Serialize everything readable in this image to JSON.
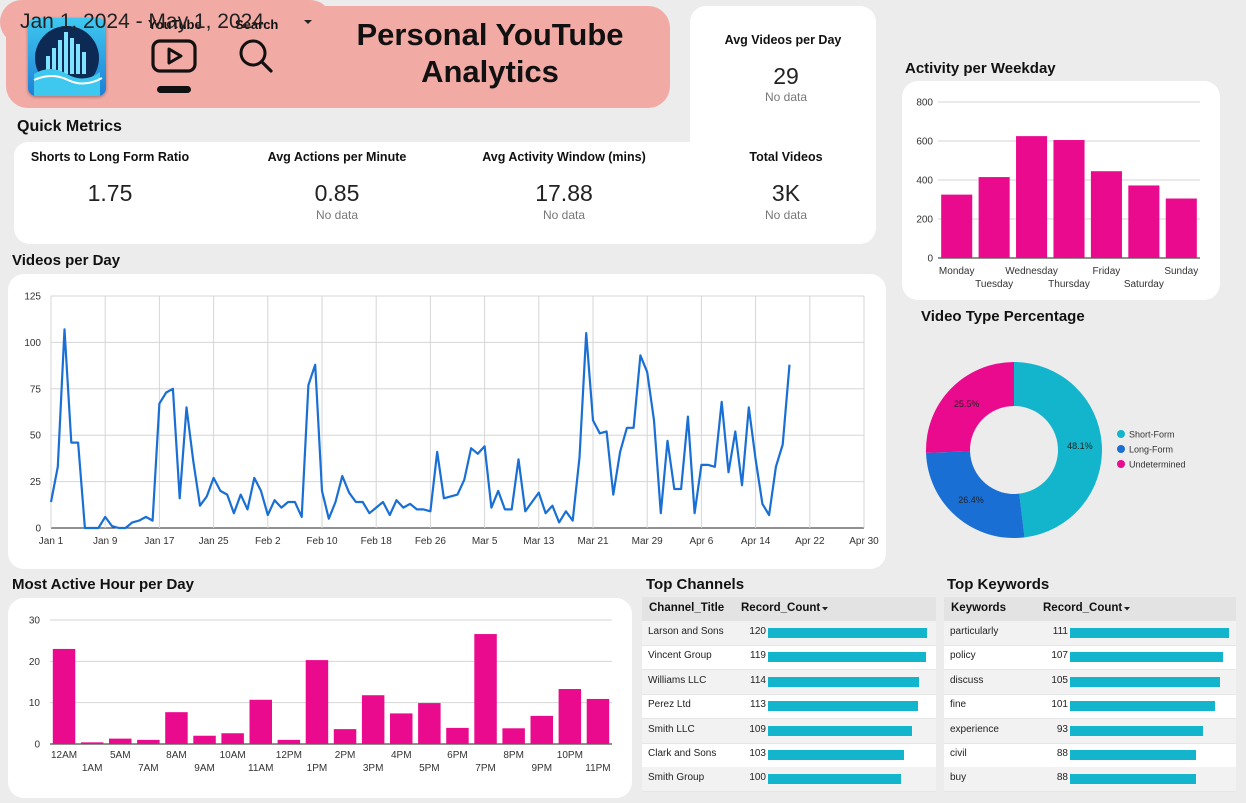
{
  "header": {
    "title_line1": "Personal YouTube",
    "title_line2": "Analytics",
    "nav": [
      {
        "label": "YouTube",
        "icon": "play-button-icon",
        "active": true
      },
      {
        "label": "Search",
        "icon": "search-icon",
        "active": false
      }
    ]
  },
  "date_range": {
    "value": "Jan 1, 2024 - May 1, 2024",
    "icon": "dropdown-arrow-icon"
  },
  "avg_videos_per_day": {
    "label": "Avg Videos per Day",
    "value": "29",
    "sub": "No data"
  },
  "quick_metrics": {
    "title": "Quick Metrics",
    "items": [
      {
        "label": "Shorts to Long Form Ratio",
        "value": "1.75",
        "sub": ""
      },
      {
        "label": "Avg Actions per Minute",
        "value": "0.85",
        "sub": "No data"
      },
      {
        "label": "Avg Activity Window (mins)",
        "value": "17.88",
        "sub": "No data"
      },
      {
        "label": "Total Videos",
        "value": "3K",
        "sub": "No data"
      }
    ]
  },
  "colors": {
    "magenta": "#ea0a8e",
    "blue": "#1a6fd4",
    "teal": "#12b5cb",
    "header_pink": "#f2aaa5"
  },
  "videos_per_day": {
    "title": "Videos per Day",
    "chart_data": {
      "type": "line",
      "ylim": [
        0,
        125
      ],
      "yticks": [
        0,
        25,
        50,
        75,
        100,
        125
      ],
      "xlim": [
        "2024-01-01",
        "2024-04-30"
      ],
      "xticks": [
        "Jan 1",
        "Jan 9",
        "Jan 17",
        "Jan 25",
        "Feb 2",
        "Feb 10",
        "Feb 18",
        "Feb 26",
        "Mar 5",
        "Mar 13",
        "Mar 21",
        "Mar 29",
        "Apr 6",
        "Apr 14",
        "Apr 22",
        "Apr 30"
      ],
      "x": [
        "2024-01-01",
        "2024-01-02",
        "2024-01-03",
        "2024-01-04",
        "2024-01-05",
        "2024-01-06",
        "2024-01-07",
        "2024-01-08",
        "2024-01-09",
        "2024-01-10",
        "2024-01-11",
        "2024-01-12",
        "2024-01-13",
        "2024-01-14",
        "2024-01-15",
        "2024-01-16",
        "2024-01-17",
        "2024-01-18",
        "2024-01-19",
        "2024-01-20",
        "2024-01-21",
        "2024-01-22",
        "2024-01-23",
        "2024-01-24",
        "2024-01-25",
        "2024-01-26",
        "2024-01-27",
        "2024-01-28",
        "2024-01-29",
        "2024-01-30",
        "2024-01-31",
        "2024-02-01",
        "2024-02-02",
        "2024-02-03",
        "2024-02-04",
        "2024-02-05",
        "2024-02-06",
        "2024-02-07",
        "2024-02-08",
        "2024-02-09",
        "2024-02-10",
        "2024-02-11",
        "2024-02-12",
        "2024-02-13",
        "2024-02-14",
        "2024-02-15",
        "2024-02-16",
        "2024-02-17",
        "2024-02-18",
        "2024-02-19",
        "2024-02-20",
        "2024-02-21",
        "2024-02-22",
        "2024-02-23",
        "2024-02-24",
        "2024-02-25",
        "2024-02-26",
        "2024-02-27",
        "2024-02-28",
        "2024-02-29",
        "2024-03-01",
        "2024-03-02",
        "2024-03-03",
        "2024-03-04",
        "2024-03-05",
        "2024-03-06",
        "2024-03-07",
        "2024-03-08",
        "2024-03-09",
        "2024-03-10",
        "2024-03-11",
        "2024-03-12",
        "2024-03-13",
        "2024-03-14",
        "2024-03-15",
        "2024-03-16",
        "2024-03-17",
        "2024-03-18",
        "2024-03-19",
        "2024-03-20",
        "2024-03-21",
        "2024-03-22",
        "2024-03-23",
        "2024-03-24",
        "2024-03-25",
        "2024-03-26",
        "2024-03-27",
        "2024-03-28",
        "2024-03-29",
        "2024-03-30",
        "2024-03-31",
        "2024-04-01",
        "2024-04-02",
        "2024-04-03",
        "2024-04-04",
        "2024-04-05",
        "2024-04-06",
        "2024-04-07",
        "2024-04-08",
        "2024-04-09",
        "2024-04-10",
        "2024-04-11",
        "2024-04-12",
        "2024-04-13",
        "2024-04-14",
        "2024-04-15",
        "2024-04-16",
        "2024-04-17",
        "2024-04-18",
        "2024-04-19"
      ],
      "values": [
        14,
        33,
        107,
        46,
        46,
        0,
        0,
        0,
        6,
        1,
        0,
        0,
        3,
        4,
        6,
        4,
        67,
        73,
        75,
        16,
        65,
        36,
        12,
        17,
        27,
        20,
        18,
        8,
        18,
        10,
        27,
        20,
        7,
        15,
        11,
        14,
        14,
        6,
        77,
        88,
        20,
        5,
        14,
        28,
        19,
        14,
        14,
        8,
        11,
        14,
        7,
        15,
        11,
        13,
        10,
        10,
        9,
        41,
        16,
        17,
        18,
        26,
        43,
        40,
        44,
        11,
        20,
        10,
        10,
        37,
        9,
        14,
        19,
        8,
        12,
        3,
        9,
        4,
        38,
        105,
        58,
        51,
        52,
        18,
        41,
        54,
        54,
        93,
        84,
        58,
        8,
        47,
        21,
        21,
        60,
        8,
        34,
        34,
        33,
        68,
        30,
        52,
        23,
        65,
        37,
        13,
        7,
        33,
        45,
        88
      ]
    }
  },
  "activity_per_weekday": {
    "title": "Activity per Weekday",
    "chart_data": {
      "type": "bar",
      "categories": [
        "Monday",
        "Tuesday",
        "Wednesday",
        "Thursday",
        "Friday",
        "Saturday",
        "Sunday"
      ],
      "values": [
        325,
        415,
        625,
        605,
        445,
        372,
        305
      ],
      "ylim": [
        0,
        800
      ],
      "yticks": [
        0,
        200,
        400,
        600,
        800
      ]
    }
  },
  "video_type_percentage": {
    "title": "Video Type Percentage",
    "chart_data": {
      "type": "pie",
      "categories": [
        "Short-Form",
        "Long-Form",
        "Undetermined"
      ],
      "values": [
        48.1,
        26.4,
        25.5
      ],
      "labels": [
        "48.1%",
        "26.4%",
        "25.5%"
      ],
      "colors": [
        "#12b5cb",
        "#1a6fd4",
        "#ea0a8e"
      ],
      "legend": "right"
    }
  },
  "most_active_hour": {
    "title": "Most Active Hour per Day",
    "chart_data": {
      "type": "bar",
      "categories": [
        "12AM",
        "1AM",
        "5AM",
        "7AM",
        "8AM",
        "9AM",
        "10AM",
        "11AM",
        "12PM",
        "1PM",
        "2PM",
        "3PM",
        "4PM",
        "5PM",
        "6PM",
        "7PM",
        "8PM",
        "9PM",
        "10PM",
        "11PM"
      ],
      "values": [
        23,
        0.4,
        1.3,
        1,
        7.7,
        2,
        2.6,
        10.7,
        1,
        20.3,
        3.6,
        11.8,
        7.4,
        9.9,
        3.9,
        26.6,
        3.8,
        6.8,
        13.3,
        10.9
      ],
      "ylim": [
        0,
        30
      ],
      "yticks": [
        0,
        10,
        20,
        30
      ]
    }
  },
  "top_channels": {
    "title": "Top Channels",
    "col1": "Channel_Title",
    "col2": "Record_Count",
    "sort_icon": "sort-down-icon",
    "rows": [
      {
        "name": "Larson and Sons",
        "count": 120
      },
      {
        "name": "Vincent Group",
        "count": 119
      },
      {
        "name": "Williams LLC",
        "count": 114
      },
      {
        "name": "Perez Ltd",
        "count": 113
      },
      {
        "name": "Smith LLC",
        "count": 109
      },
      {
        "name": "Clark and Sons",
        "count": 103
      },
      {
        "name": "Smith Group",
        "count": 100
      }
    ]
  },
  "top_keywords": {
    "title": "Top Keywords",
    "col1": "Keywords",
    "col2": "Record_Count",
    "sort_icon": "sort-down-icon",
    "rows": [
      {
        "name": "particularly",
        "count": 111
      },
      {
        "name": "policy",
        "count": 107
      },
      {
        "name": "discuss",
        "count": 105
      },
      {
        "name": "fine",
        "count": 101
      },
      {
        "name": "experience",
        "count": 93
      },
      {
        "name": "civil",
        "count": 88
      },
      {
        "name": "buy",
        "count": 88
      }
    ]
  }
}
